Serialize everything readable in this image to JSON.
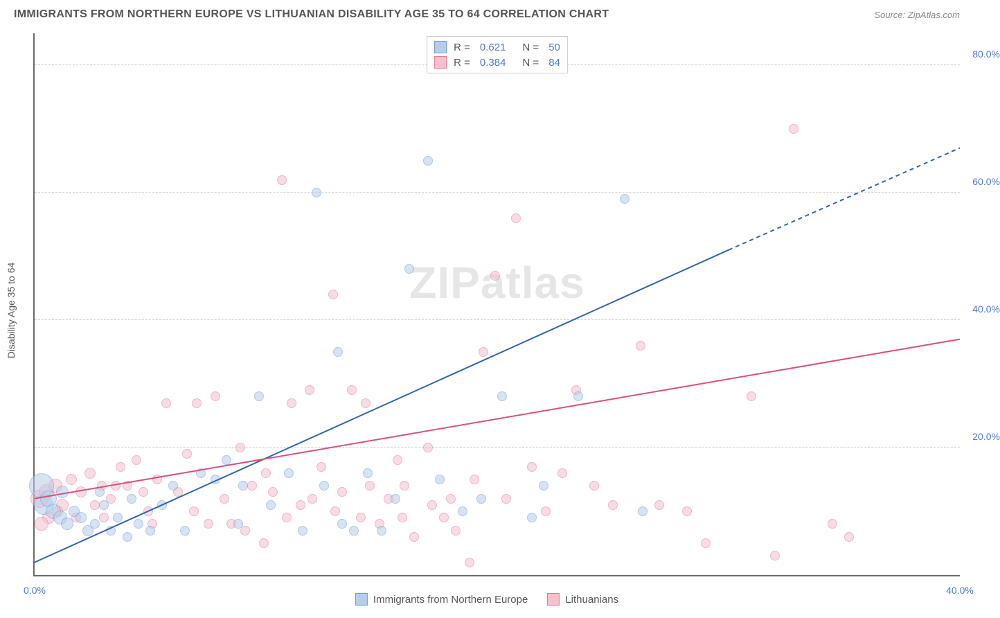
{
  "header": {
    "title": "IMMIGRANTS FROM NORTHERN EUROPE VS LITHUANIAN DISABILITY AGE 35 TO 64 CORRELATION CHART",
    "source": "Source: ZipAtlas.com"
  },
  "watermark": "ZIPatlas",
  "y_axis_label": "Disability Age 35 to 64",
  "chart": {
    "type": "scatter",
    "xlim": [
      0,
      40
    ],
    "ylim": [
      0,
      85
    ],
    "x_ticks": [
      0,
      40
    ],
    "x_tick_labels": [
      "0.0%",
      "40.0%"
    ],
    "y_gridlines": [
      20,
      40,
      60,
      80
    ],
    "y_tick_labels": [
      "20.0%",
      "40.0%",
      "60.0%",
      "80.0%"
    ],
    "background_color": "#ffffff",
    "grid_color": "#cfcfcf",
    "axis_color": "#6a6a6a",
    "tick_label_color": "#4a7bd0",
    "series": [
      {
        "key": "northern_europe",
        "label": "Immigrants from Northern Europe",
        "fill": "#b7cdea",
        "stroke": "#6f9cd8",
        "fill_opacity": 0.55,
        "marker_radius": 7,
        "R": "0.621",
        "N": "50",
        "regression": {
          "x1": 0,
          "y1": 2,
          "x2": 30,
          "y2": 51,
          "dashed_to": {
            "x": 40,
            "y": 67
          },
          "color": "#2f63b6",
          "width": 2
        },
        "points": [
          {
            "x": 0.3,
            "y": 14,
            "r": 18
          },
          {
            "x": 0.4,
            "y": 11,
            "r": 14
          },
          {
            "x": 0.6,
            "y": 12,
            "r": 12
          },
          {
            "x": 0.8,
            "y": 10,
            "r": 11
          },
          {
            "x": 1.1,
            "y": 9,
            "r": 10
          },
          {
            "x": 1.4,
            "y": 8,
            "r": 9
          },
          {
            "x": 1.7,
            "y": 10,
            "r": 8
          },
          {
            "x": 2.0,
            "y": 9,
            "r": 8
          },
          {
            "x": 2.3,
            "y": 7,
            "r": 8
          },
          {
            "x": 2.6,
            "y": 8,
            "r": 7
          },
          {
            "x": 3.0,
            "y": 11,
            "r": 7
          },
          {
            "x": 3.3,
            "y": 7,
            "r": 7
          },
          {
            "x": 3.6,
            "y": 9,
            "r": 7
          },
          {
            "x": 4.0,
            "y": 6,
            "r": 7
          },
          {
            "x": 4.5,
            "y": 8,
            "r": 7
          },
          {
            "x": 5.0,
            "y": 7,
            "r": 7
          },
          {
            "x": 5.5,
            "y": 11,
            "r": 7
          },
          {
            "x": 6.0,
            "y": 14,
            "r": 7
          },
          {
            "x": 6.5,
            "y": 7,
            "r": 7
          },
          {
            "x": 7.2,
            "y": 16,
            "r": 7
          },
          {
            "x": 7.8,
            "y": 15,
            "r": 7
          },
          {
            "x": 8.3,
            "y": 18,
            "r": 7
          },
          {
            "x": 9.0,
            "y": 14,
            "r": 7
          },
          {
            "x": 9.7,
            "y": 28,
            "r": 7
          },
          {
            "x": 10.2,
            "y": 11,
            "r": 7
          },
          {
            "x": 11.0,
            "y": 16,
            "r": 7
          },
          {
            "x": 11.6,
            "y": 7,
            "r": 7
          },
          {
            "x": 12.2,
            "y": 60,
            "r": 7
          },
          {
            "x": 12.5,
            "y": 14,
            "r": 7
          },
          {
            "x": 13.1,
            "y": 35,
            "r": 7
          },
          {
            "x": 13.8,
            "y": 7,
            "r": 7
          },
          {
            "x": 14.4,
            "y": 16,
            "r": 7
          },
          {
            "x": 15.0,
            "y": 7,
            "r": 7
          },
          {
            "x": 15.6,
            "y": 12,
            "r": 7
          },
          {
            "x": 16.2,
            "y": 48,
            "r": 7
          },
          {
            "x": 17.0,
            "y": 65,
            "r": 7
          },
          {
            "x": 17.5,
            "y": 15,
            "r": 7
          },
          {
            "x": 18.5,
            "y": 10,
            "r": 7
          },
          {
            "x": 19.3,
            "y": 12,
            "r": 7
          },
          {
            "x": 20.2,
            "y": 28,
            "r": 7
          },
          {
            "x": 21.5,
            "y": 9,
            "r": 7
          },
          {
            "x": 22.0,
            "y": 14,
            "r": 7
          },
          {
            "x": 23.5,
            "y": 28,
            "r": 7
          },
          {
            "x": 25.5,
            "y": 59,
            "r": 7
          },
          {
            "x": 26.3,
            "y": 10,
            "r": 7
          },
          {
            "x": 13.3,
            "y": 8,
            "r": 7
          },
          {
            "x": 8.8,
            "y": 8,
            "r": 7
          },
          {
            "x": 4.2,
            "y": 12,
            "r": 7
          },
          {
            "x": 2.8,
            "y": 13,
            "r": 7
          },
          {
            "x": 1.2,
            "y": 13,
            "r": 9
          }
        ]
      },
      {
        "key": "lithuanians",
        "label": "Lithuanians",
        "fill": "#f4c1cd",
        "stroke": "#e27a95",
        "fill_opacity": 0.55,
        "marker_radius": 7,
        "R": "0.384",
        "N": "84",
        "regression": {
          "x1": 0,
          "y1": 12,
          "x2": 40,
          "y2": 37,
          "color": "#d85078",
          "width": 2
        },
        "points": [
          {
            "x": 0.2,
            "y": 12,
            "r": 13
          },
          {
            "x": 0.5,
            "y": 13,
            "r": 11
          },
          {
            "x": 0.9,
            "y": 14,
            "r": 10
          },
          {
            "x": 1.2,
            "y": 11,
            "r": 9
          },
          {
            "x": 1.6,
            "y": 15,
            "r": 8
          },
          {
            "x": 2.0,
            "y": 13,
            "r": 8
          },
          {
            "x": 2.4,
            "y": 16,
            "r": 8
          },
          {
            "x": 2.9,
            "y": 14,
            "r": 7
          },
          {
            "x": 3.3,
            "y": 12,
            "r": 7
          },
          {
            "x": 3.7,
            "y": 17,
            "r": 7
          },
          {
            "x": 4.0,
            "y": 14,
            "r": 7
          },
          {
            "x": 4.4,
            "y": 18,
            "r": 7
          },
          {
            "x": 4.9,
            "y": 10,
            "r": 7
          },
          {
            "x": 5.3,
            "y": 15,
            "r": 7
          },
          {
            "x": 5.7,
            "y": 27,
            "r": 7
          },
          {
            "x": 6.2,
            "y": 13,
            "r": 7
          },
          {
            "x": 6.6,
            "y": 19,
            "r": 7
          },
          {
            "x": 7.0,
            "y": 27,
            "r": 7
          },
          {
            "x": 7.8,
            "y": 28,
            "r": 7
          },
          {
            "x": 8.2,
            "y": 12,
            "r": 7
          },
          {
            "x": 8.9,
            "y": 20,
            "r": 7
          },
          {
            "x": 9.4,
            "y": 14,
            "r": 7
          },
          {
            "x": 9.9,
            "y": 5,
            "r": 7
          },
          {
            "x": 10.3,
            "y": 13,
            "r": 7
          },
          {
            "x": 10.7,
            "y": 62,
            "r": 7
          },
          {
            "x": 11.1,
            "y": 27,
            "r": 7
          },
          {
            "x": 11.5,
            "y": 11,
            "r": 7
          },
          {
            "x": 11.9,
            "y": 29,
            "r": 7
          },
          {
            "x": 12.4,
            "y": 17,
            "r": 7
          },
          {
            "x": 12.9,
            "y": 44,
            "r": 7
          },
          {
            "x": 13.3,
            "y": 13,
            "r": 7
          },
          {
            "x": 13.7,
            "y": 29,
            "r": 7
          },
          {
            "x": 14.1,
            "y": 9,
            "r": 7
          },
          {
            "x": 14.5,
            "y": 14,
            "r": 7
          },
          {
            "x": 14.9,
            "y": 8,
            "r": 7
          },
          {
            "x": 15.3,
            "y": 12,
            "r": 7
          },
          {
            "x": 15.7,
            "y": 18,
            "r": 7
          },
          {
            "x": 15.9,
            "y": 9,
            "r": 7
          },
          {
            "x": 16.4,
            "y": 6,
            "r": 7
          },
          {
            "x": 17.2,
            "y": 11,
            "r": 7
          },
          {
            "x": 17.7,
            "y": 9,
            "r": 7
          },
          {
            "x": 18.2,
            "y": 7,
            "r": 7
          },
          {
            "x": 18.8,
            "y": 2,
            "r": 7
          },
          {
            "x": 19.4,
            "y": 35,
            "r": 7
          },
          {
            "x": 19.9,
            "y": 47,
            "r": 7
          },
          {
            "x": 20.4,
            "y": 12,
            "r": 7
          },
          {
            "x": 20.8,
            "y": 56,
            "r": 7
          },
          {
            "x": 21.5,
            "y": 17,
            "r": 7
          },
          {
            "x": 22.1,
            "y": 10,
            "r": 7
          },
          {
            "x": 22.8,
            "y": 16,
            "r": 7
          },
          {
            "x": 23.4,
            "y": 29,
            "r": 7
          },
          {
            "x": 24.2,
            "y": 14,
            "r": 7
          },
          {
            "x": 25.0,
            "y": 11,
            "r": 7
          },
          {
            "x": 26.2,
            "y": 36,
            "r": 7
          },
          {
            "x": 27.0,
            "y": 11,
            "r": 7
          },
          {
            "x": 28.2,
            "y": 10,
            "r": 7
          },
          {
            "x": 29.0,
            "y": 5,
            "r": 7
          },
          {
            "x": 31.0,
            "y": 28,
            "r": 7
          },
          {
            "x": 32.8,
            "y": 70,
            "r": 7
          },
          {
            "x": 32.0,
            "y": 3,
            "r": 7
          },
          {
            "x": 34.5,
            "y": 8,
            "r": 7
          },
          {
            "x": 35.2,
            "y": 6,
            "r": 7
          },
          {
            "x": 3.0,
            "y": 9,
            "r": 7
          },
          {
            "x": 4.7,
            "y": 13,
            "r": 7
          },
          {
            "x": 5.1,
            "y": 8,
            "r": 7
          },
          {
            "x": 6.9,
            "y": 10,
            "r": 7
          },
          {
            "x": 7.5,
            "y": 8,
            "r": 7
          },
          {
            "x": 8.5,
            "y": 8,
            "r": 7
          },
          {
            "x": 9.1,
            "y": 7,
            "r": 7
          },
          {
            "x": 10.0,
            "y": 16,
            "r": 7
          },
          {
            "x": 10.9,
            "y": 9,
            "r": 7
          },
          {
            "x": 12.0,
            "y": 12,
            "r": 7
          },
          {
            "x": 13.0,
            "y": 10,
            "r": 7
          },
          {
            "x": 14.3,
            "y": 27,
            "r": 7
          },
          {
            "x": 16.0,
            "y": 14,
            "r": 7
          },
          {
            "x": 17.0,
            "y": 20,
            "r": 7
          },
          {
            "x": 18.0,
            "y": 12,
            "r": 7
          },
          {
            "x": 19.0,
            "y": 15,
            "r": 7
          },
          {
            "x": 1.0,
            "y": 10,
            "r": 8
          },
          {
            "x": 1.8,
            "y": 9,
            "r": 7
          },
          {
            "x": 2.6,
            "y": 11,
            "r": 7
          },
          {
            "x": 3.5,
            "y": 14,
            "r": 7
          },
          {
            "x": 0.6,
            "y": 9,
            "r": 9
          },
          {
            "x": 0.3,
            "y": 8,
            "r": 10
          }
        ]
      }
    ]
  },
  "legend_top": {
    "rows": [
      {
        "swatch_fill": "#b7cdea",
        "swatch_stroke": "#6f9cd8",
        "R": "0.621",
        "N": "50"
      },
      {
        "swatch_fill": "#f4c1cd",
        "swatch_stroke": "#e27a95",
        "R": "0.384",
        "N": "84"
      }
    ]
  },
  "legend_bottom": {
    "items": [
      {
        "swatch_fill": "#b7cdea",
        "swatch_stroke": "#6f9cd8",
        "label": "Immigrants from Northern Europe"
      },
      {
        "swatch_fill": "#f4c1cd",
        "swatch_stroke": "#e27a95",
        "label": "Lithuanians"
      }
    ]
  }
}
